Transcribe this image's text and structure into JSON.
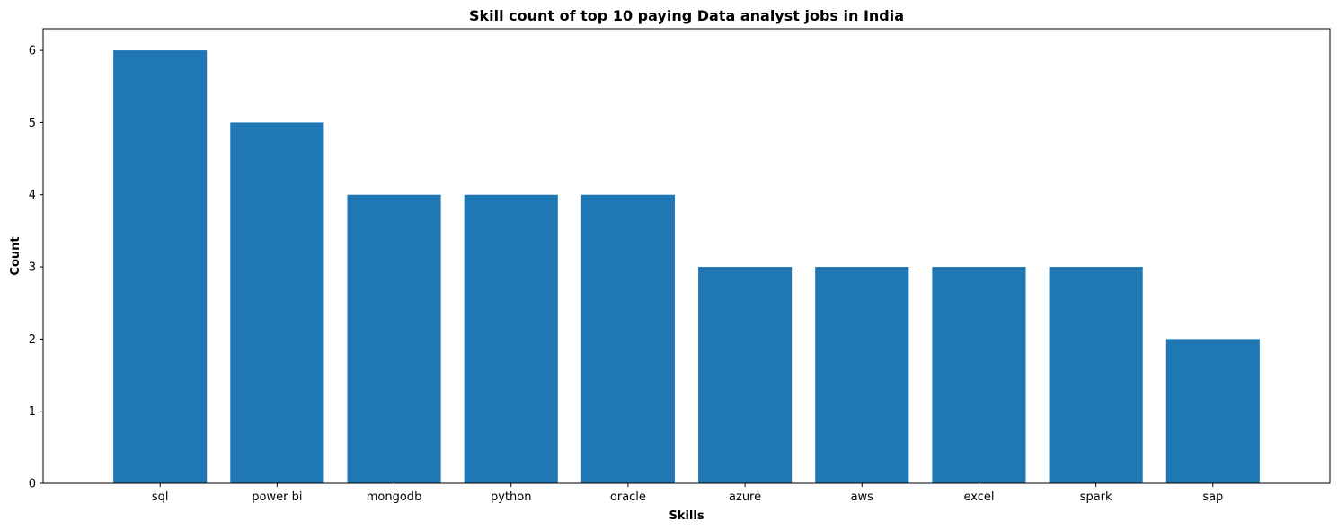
{
  "chart_data": {
    "type": "bar",
    "title": "Skill count of top 10 paying Data analyst jobs in India",
    "xlabel": "Skills",
    "ylabel": "Count",
    "categories": [
      "sql",
      "power bi",
      "mongodb",
      "python",
      "oracle",
      "azure",
      "aws",
      "excel",
      "spark",
      "sap"
    ],
    "values": [
      6,
      5,
      4,
      4,
      4,
      3,
      3,
      3,
      3,
      2
    ],
    "ylim": [
      0,
      6.3
    ],
    "yticks": [
      "0",
      "1",
      "2",
      "3",
      "4",
      "5",
      "6"
    ],
    "grid": false,
    "legend": "none",
    "colors": {
      "bar": "#1f77b4",
      "axis": "#000000",
      "background": "#ffffff"
    }
  }
}
